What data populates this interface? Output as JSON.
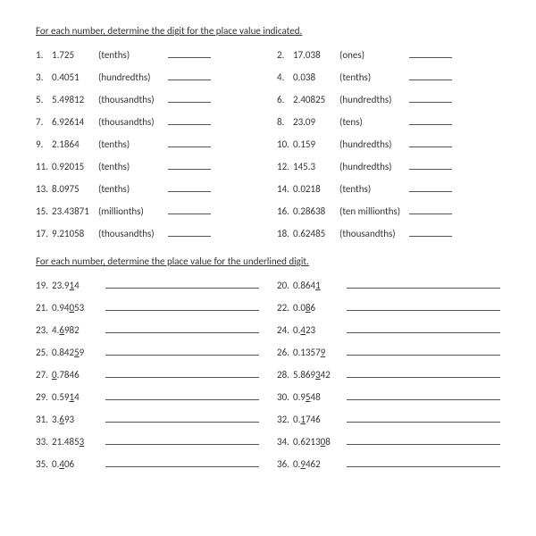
{
  "instruction1": "For each number, determine the digit for the place value indicated.",
  "instruction2": "For each number, determine the place value for the underlined digit.",
  "section1": [
    {
      "n": "1.",
      "num": "1.725",
      "place": "(tenths)"
    },
    {
      "n": "2.",
      "num": "17.038",
      "place": "(ones)"
    },
    {
      "n": "3.",
      "num": "0.4051",
      "place": "(hundredths)"
    },
    {
      "n": "4.",
      "num": "0.038",
      "place": "(tenths)"
    },
    {
      "n": "5.",
      "num": "5.49812",
      "place": "(thousandths)"
    },
    {
      "n": "6.",
      "num": "2.40825",
      "place": "(hundredths)"
    },
    {
      "n": "7.",
      "num": "6.92614",
      "place": "(thousandths)"
    },
    {
      "n": "8.",
      "num": "23.09",
      "place": "(tens)"
    },
    {
      "n": "9.",
      "num": "2.1864",
      "place": "(tenths)"
    },
    {
      "n": "10.",
      "num": "0.159",
      "place": "(hundredths)"
    },
    {
      "n": "11.",
      "num": "0.92015",
      "place": "(tenths)"
    },
    {
      "n": "12.",
      "num": "145.3",
      "place": "(hundredths)"
    },
    {
      "n": "13.",
      "num": "8.0975",
      "place": "(tenths)"
    },
    {
      "n": "14.",
      "num": "0.0218",
      "place": "(tenths)"
    },
    {
      "n": "15.",
      "num": "23.43871",
      "place": "(millionths)"
    },
    {
      "n": "16.",
      "num": "0.28638",
      "place": "(ten millionths)"
    },
    {
      "n": "17.",
      "num": "9.21058",
      "place": "(thousandths)"
    },
    {
      "n": "18.",
      "num": "0.62485",
      "place": "(thousandths)"
    }
  ],
  "section2": [
    {
      "n": "19.",
      "pre": "23.9",
      "u": "1",
      "post": "4"
    },
    {
      "n": "20.",
      "pre": "0.864",
      "u": "1",
      "post": ""
    },
    {
      "n": "21.",
      "pre": "0.94",
      "u": "0",
      "post": "53"
    },
    {
      "n": "22.",
      "pre": "0.0",
      "u": "8",
      "post": "6"
    },
    {
      "n": "23.",
      "pre": "4.",
      "u": "6",
      "post": "982"
    },
    {
      "n": "24.",
      "pre": "0.",
      "u": "4",
      "post": "23"
    },
    {
      "n": "25.",
      "pre": "0.842",
      "u": "5",
      "post": "9"
    },
    {
      "n": "26.",
      "pre": "0.1357",
      "u": "9",
      "post": ""
    },
    {
      "n": "27.",
      "pre": "",
      "u": "0",
      "post": ".7846"
    },
    {
      "n": "28.",
      "pre": "5.869",
      "u": "3",
      "post": "42"
    },
    {
      "n": "29.",
      "pre": "0.59",
      "u": "1",
      "post": "4"
    },
    {
      "n": "30.",
      "pre": "0.9",
      "u": "5",
      "post": "48"
    },
    {
      "n": "31.",
      "pre": "3.",
      "u": "6",
      "post": "93"
    },
    {
      "n": "32.",
      "pre": "0.",
      "u": "1",
      "post": "746"
    },
    {
      "n": "33.",
      "pre": "21.485",
      "u": "3",
      "post": ""
    },
    {
      "n": "34.",
      "pre": "0.6213",
      "u": "0",
      "post": "8"
    },
    {
      "n": "35.",
      "pre": "0.",
      "u": "4",
      "post": "06"
    },
    {
      "n": "36.",
      "pre": "0.",
      "u": "9",
      "post": "462"
    }
  ]
}
